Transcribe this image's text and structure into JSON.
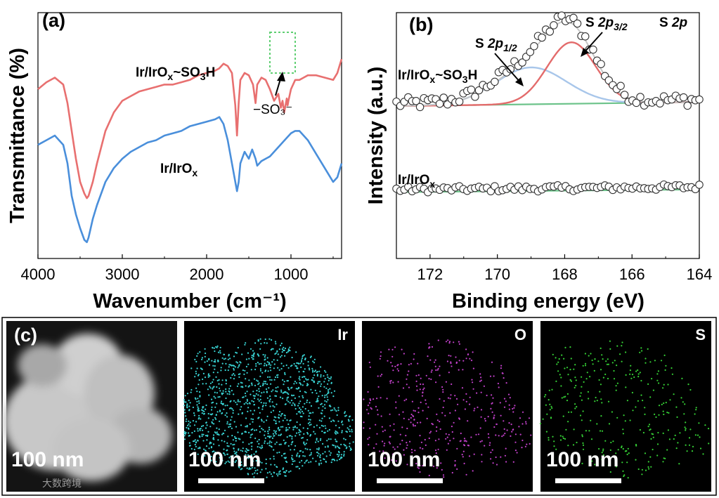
{
  "chart_data": [
    {
      "type": "line",
      "panel": "(a)",
      "xlabel": "Wavenumber (cm⁻¹)",
      "ylabel": "Transmittance (%)",
      "xlim": [
        4000,
        400
      ],
      "x_ticks": [
        "4000",
        "3000",
        "2000",
        "1000"
      ],
      "annotation": {
        "text": "−SO₃⁻",
        "near_x": 1080
      },
      "colors": {
        "top": "#e87070",
        "bottom": "#4a8fdb",
        "box": "#5fcf72"
      },
      "series": [
        {
          "name": "Ir/IrOₓ~SO₃H",
          "label_main": "Ir/IrO",
          "label_sub1": "x",
          "label_mid": "~SO",
          "label_sub2": "3",
          "label_end": "H",
          "x": [
            4000,
            3900,
            3800,
            3700,
            3650,
            3600,
            3550,
            3500,
            3450,
            3420,
            3400,
            3350,
            3300,
            3250,
            3200,
            3100,
            3000,
            2900,
            2800,
            2700,
            2600,
            2500,
            2400,
            2300,
            2200,
            2100,
            2000,
            1900,
            1850,
            1800,
            1750,
            1700,
            1660,
            1640,
            1620,
            1600,
            1550,
            1500,
            1450,
            1420,
            1400,
            1350,
            1300,
            1250,
            1200,
            1150,
            1120,
            1100,
            1080,
            1050,
            1040,
            1030,
            1000,
            950,
            900,
            850,
            800,
            700,
            600,
            500,
            450,
            400
          ],
          "y": [
            0.6,
            0.63,
            0.65,
            0.62,
            0.54,
            0.42,
            0.3,
            0.2,
            0.15,
            0.13,
            0.14,
            0.2,
            0.28,
            0.35,
            0.42,
            0.5,
            0.55,
            0.57,
            0.59,
            0.6,
            0.61,
            0.62,
            0.62,
            0.63,
            0.64,
            0.66,
            0.67,
            0.68,
            0.69,
            0.71,
            0.7,
            0.67,
            0.53,
            0.4,
            0.54,
            0.64,
            0.67,
            0.66,
            0.62,
            0.54,
            0.62,
            0.65,
            0.64,
            0.6,
            0.55,
            0.58,
            0.52,
            0.55,
            0.5,
            0.56,
            0.53,
            0.55,
            0.6,
            0.64,
            0.64,
            0.65,
            0.66,
            0.66,
            0.65,
            0.64,
            0.67,
            0.73
          ]
        },
        {
          "name": "Ir/IrOₓ",
          "label_main": "Ir/IrO",
          "label_sub1": "x",
          "x": [
            4000,
            3900,
            3800,
            3700,
            3650,
            3600,
            3550,
            3500,
            3450,
            3420,
            3400,
            3350,
            3300,
            3250,
            3200,
            3100,
            3000,
            2900,
            2800,
            2700,
            2600,
            2500,
            2400,
            2300,
            2200,
            2100,
            2000,
            1900,
            1850,
            1800,
            1750,
            1700,
            1660,
            1640,
            1620,
            1600,
            1550,
            1500,
            1460,
            1420,
            1400,
            1350,
            1300,
            1250,
            1200,
            1150,
            1100,
            1050,
            1000,
            950,
            900,
            850,
            800,
            700,
            600,
            500,
            450,
            400
          ],
          "y": [
            0.36,
            0.38,
            0.4,
            0.36,
            0.28,
            0.14,
            0.06,
            0.0,
            -0.05,
            -0.06,
            -0.04,
            0.04,
            0.1,
            0.15,
            0.2,
            0.26,
            0.3,
            0.33,
            0.35,
            0.37,
            0.38,
            0.4,
            0.41,
            0.42,
            0.44,
            0.45,
            0.46,
            0.47,
            0.48,
            0.45,
            0.38,
            0.28,
            0.2,
            0.16,
            0.2,
            0.28,
            0.33,
            0.3,
            0.34,
            0.3,
            0.27,
            0.29,
            0.3,
            0.31,
            0.33,
            0.35,
            0.37,
            0.39,
            0.41,
            0.42,
            0.42,
            0.4,
            0.38,
            0.32,
            0.26,
            0.2,
            0.22,
            0.28
          ]
        }
      ]
    },
    {
      "type": "scatter",
      "panel": "(b)",
      "xlabel": "Binding energy (eV)",
      "ylabel": "Intensity (a.u.)",
      "xlim": [
        173,
        164
      ],
      "x_ticks": [
        "172",
        "170",
        "168",
        "166",
        "164"
      ],
      "corner_label": {
        "prefix": "S ",
        "italic": "2p"
      },
      "peak_labels": [
        {
          "prefix": "S ",
          "italic": "2p",
          "sub": "1/2",
          "center_eV": 169.0
        },
        {
          "prefix": "S ",
          "italic": "2p",
          "sub": "3/2",
          "center_eV": 167.8
        }
      ],
      "colors": {
        "p12": "#a8c6ea",
        "p32": "#e36b6b",
        "baseline": "#6cc38a",
        "envelope": "#c6c6c6"
      },
      "series": [
        {
          "name": "Ir/IrOₓ~SO₃H",
          "label_main": "Ir/IrO",
          "label_sub1": "x",
          "label_mid": "~SO",
          "label_sub2": "3",
          "label_end": "H",
          "baseline": 0.62,
          "peaks": [
            {
              "center": 169.0,
              "height": 0.15,
              "sigma": 1.05
            },
            {
              "center": 167.8,
              "height": 0.25,
              "sigma": 0.72
            }
          ],
          "scatter_amplitude": 0.025,
          "n_points": 78
        },
        {
          "name": "Ir/IrOₓ",
          "label_main": "Ir/IrO",
          "label_sub1": "x",
          "baseline": 0.27,
          "peaks": [],
          "scatter_amplitude": 0.012,
          "n_points": 78
        }
      ]
    }
  ],
  "panel_c": {
    "panel_label": "(c)",
    "images": [
      {
        "element": "",
        "scale": "100 nm",
        "dot_color": ""
      },
      {
        "element": "Ir",
        "scale": "100 nm",
        "dot_color": "#39d4d4"
      },
      {
        "element": "O",
        "scale": "100 nm",
        "dot_color": "#c040c8"
      },
      {
        "element": "S",
        "scale": "100 nm",
        "dot_color": "#35d035"
      }
    ],
    "dot_counts": [
      0,
      1300,
      420,
      320
    ]
  },
  "watermark": "大数跨境"
}
